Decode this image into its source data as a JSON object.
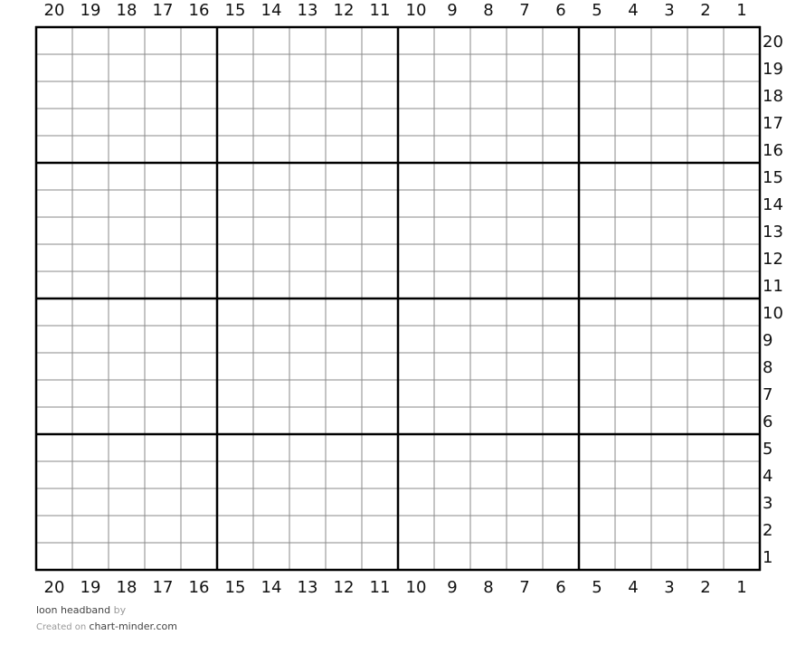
{
  "grid": {
    "columns": 20,
    "rows": 20,
    "major_every": 5,
    "column_labels": [
      "20",
      "19",
      "18",
      "17",
      "16",
      "15",
      "14",
      "13",
      "12",
      "11",
      "10",
      "9",
      "8",
      "7",
      "6",
      "5",
      "4",
      "3",
      "2",
      "1"
    ],
    "row_labels": [
      "20",
      "19",
      "18",
      "17",
      "16",
      "15",
      "14",
      "13",
      "12",
      "11",
      "10",
      "9",
      "8",
      "7",
      "6",
      "5",
      "4",
      "3",
      "2",
      "1"
    ],
    "thin_line_color": "#8a8a8a",
    "thick_line_color": "#000000"
  },
  "footer": {
    "pattern_name": "loon headband",
    "by": "by",
    "created_on": "Created on",
    "site": "chart-minder.com"
  }
}
